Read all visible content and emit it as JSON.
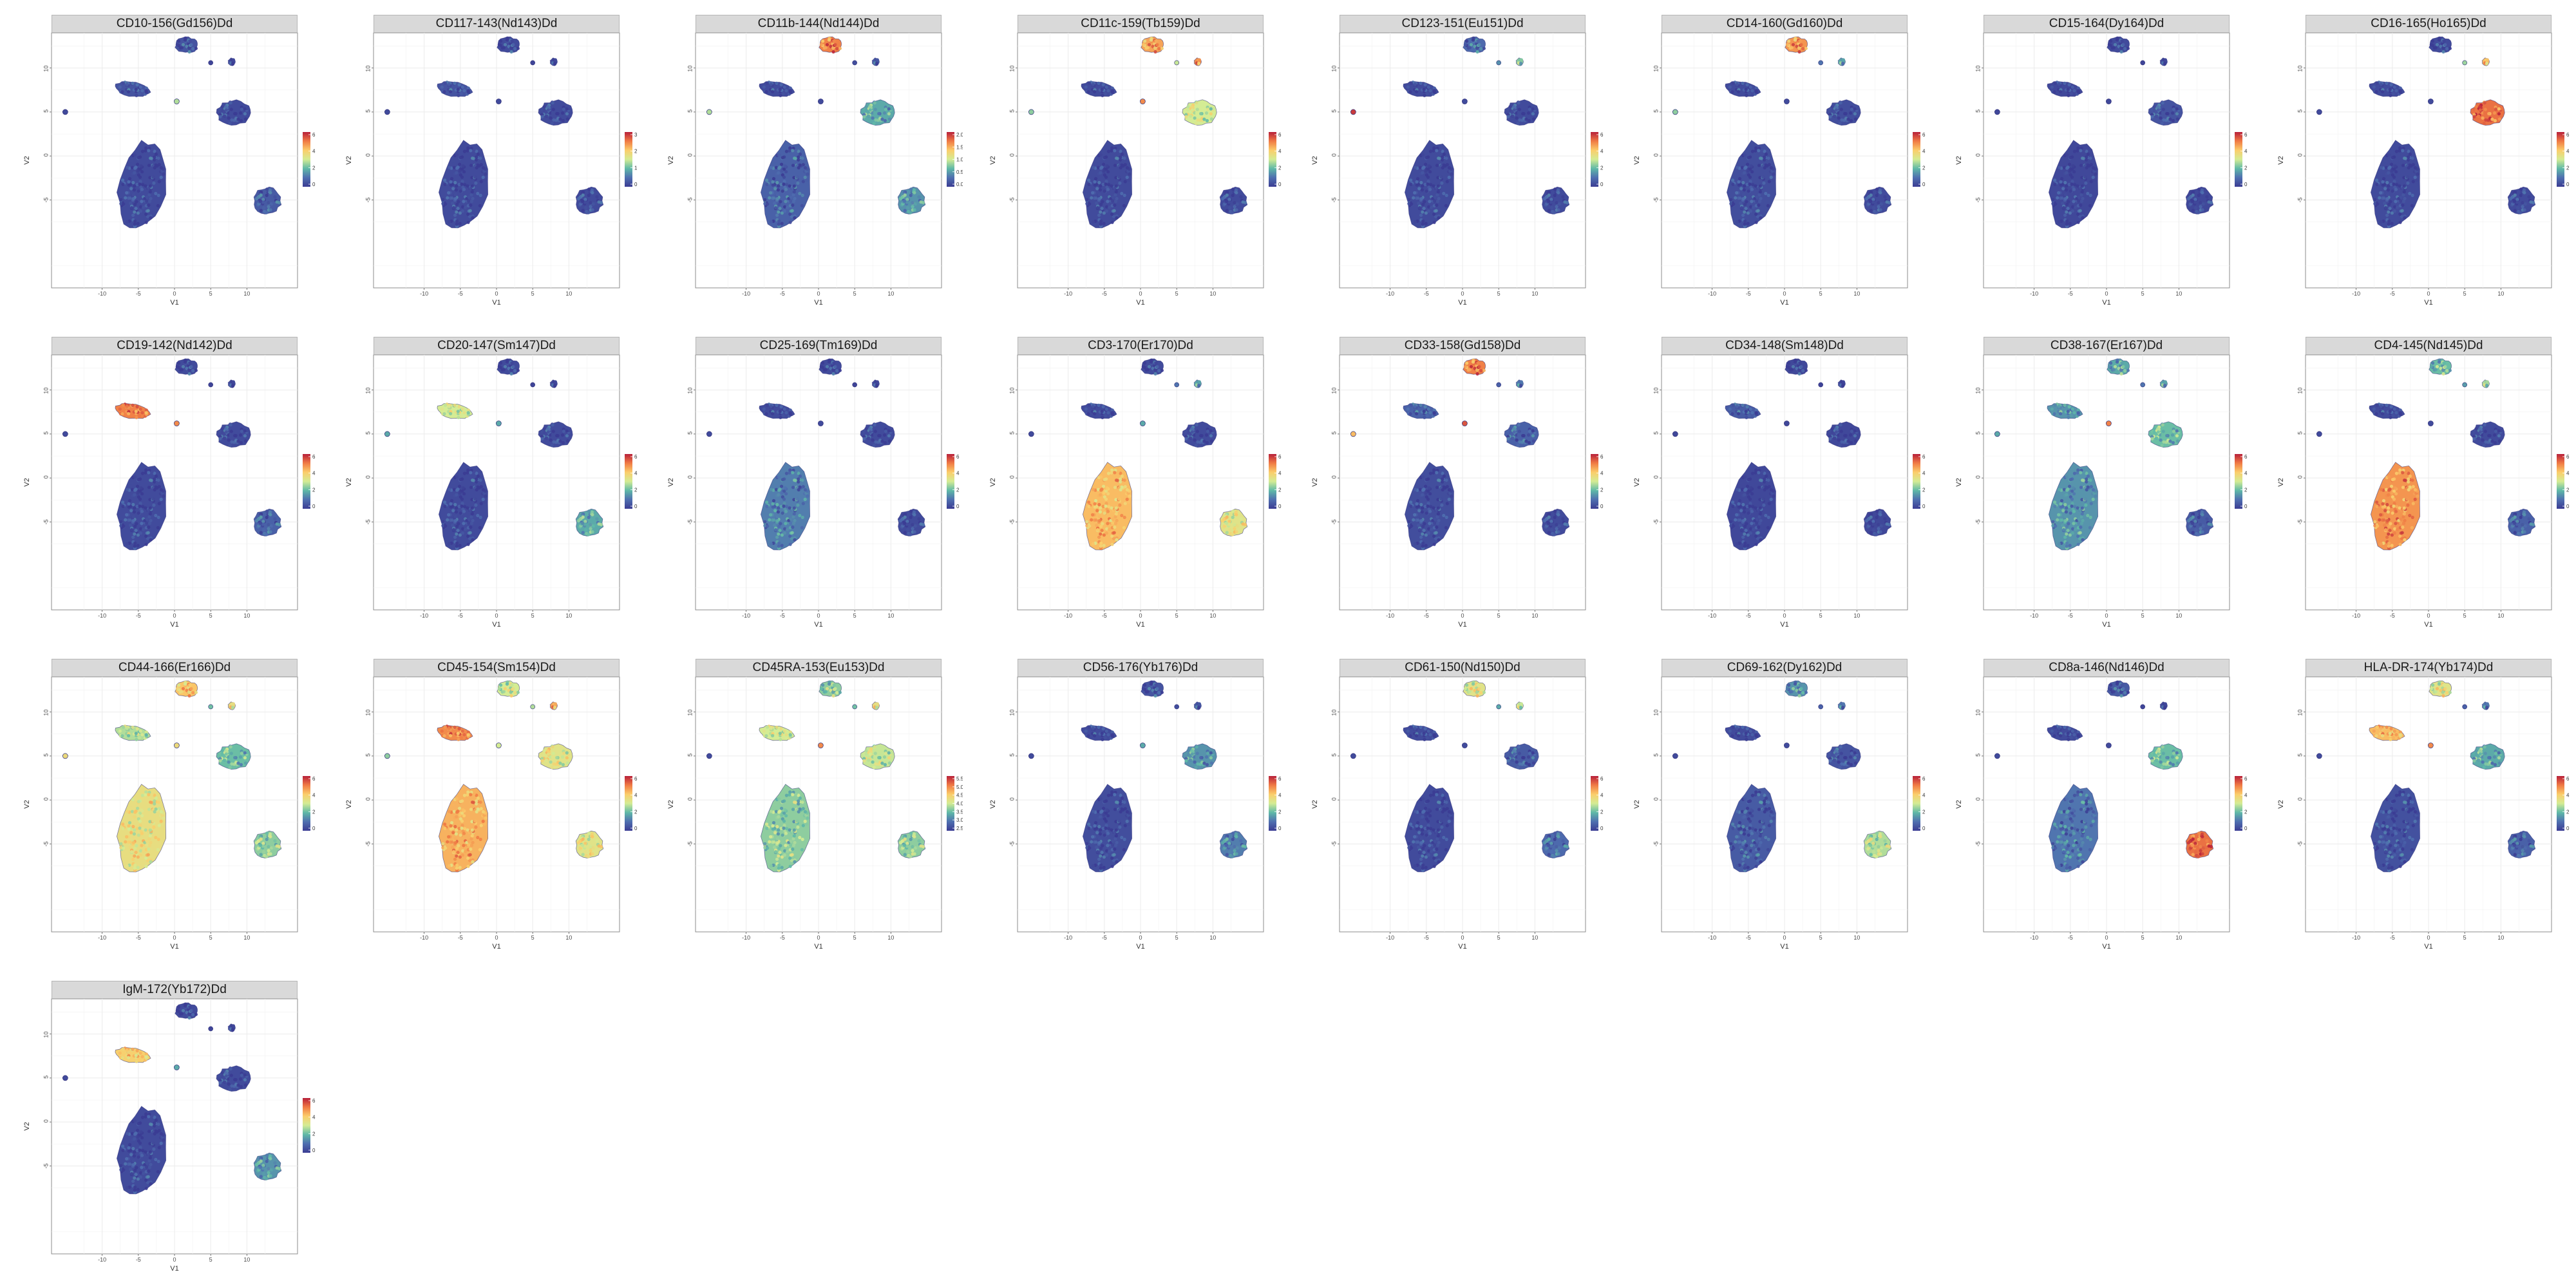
{
  "chart_data": {
    "type": "scatter",
    "layout": "faceted UMAP panels, 8 per row",
    "xlabel": "V1",
    "ylabel": "V2",
    "xlim": [
      -17,
      17
    ],
    "ylim": [
      -15,
      14
    ],
    "x_ticks": [
      -10,
      -5,
      0,
      5,
      10
    ],
    "y_ticks": [
      10,
      5,
      0,
      -5
    ],
    "x_tick_labels": [
      "-10",
      "-5",
      "0",
      "5",
      "10"
    ],
    "y_tick_labels": [
      "10",
      "5",
      "0",
      "-5"
    ],
    "grid": true,
    "legend_placement": "right of each panel",
    "colormap": [
      "#3b3c93",
      "#4f6fb0",
      "#5fb9a7",
      "#d4ec94",
      "#fbcd6b",
      "#f07a44",
      "#b8203a"
    ],
    "cluster_names": [
      "big-lower-left",
      "lower-right",
      "right-middle",
      "left-elongated",
      "top-center",
      "top-right-small",
      "mid-small",
      "far-left-dot"
    ],
    "panels": [
      {
        "title": "CD10-156(Gd156)Dd",
        "legend_ticks": [
          "6",
          "4",
          "2",
          "0"
        ],
        "levels": [
          0.05,
          0.1,
          0.05,
          0.08,
          0.08,
          0.05,
          0.45,
          0.05
        ]
      },
      {
        "title": "CD117-143(Nd143)Dd",
        "legend_ticks": [
          "3",
          "2",
          "1",
          "0"
        ],
        "levels": [
          0.05,
          0.05,
          0.05,
          0.08,
          0.05,
          0.05,
          0.05,
          0.05
        ]
      },
      {
        "title": "CD11b-144(Nd144)Dd",
        "legend_ticks": [
          "2.0",
          "1.5",
          "1.0",
          "0.5",
          "0.0"
        ],
        "levels": [
          0.12,
          0.25,
          0.3,
          0.05,
          0.82,
          0.1,
          0.05,
          0.45
        ]
      },
      {
        "title": "CD11c-159(Tb159)Dd",
        "legend_ticks": [
          "6",
          "4",
          "2",
          "0"
        ],
        "levels": [
          0.05,
          0.05,
          0.5,
          0.05,
          0.75,
          0.8,
          0.8,
          0.4
        ]
      },
      {
        "title": "CD123-151(Eu151)Dd",
        "legend_ticks": [
          "6",
          "4",
          "2",
          "0"
        ],
        "levels": [
          0.05,
          0.05,
          0.05,
          0.05,
          0.15,
          0.4,
          0.05,
          0.95
        ]
      },
      {
        "title": "CD14-160(Gd160)Dd",
        "legend_ticks": [
          "6",
          "4",
          "2",
          "0"
        ],
        "levels": [
          0.06,
          0.05,
          0.06,
          0.05,
          0.78,
          0.3,
          0.05,
          0.4
        ]
      },
      {
        "title": "CD15-164(Dy164)Dd",
        "legend_ticks": [
          "6",
          "4",
          "2",
          "0"
        ],
        "levels": [
          0.04,
          0.04,
          0.08,
          0.04,
          0.05,
          0.05,
          0.04,
          0.04
        ]
      },
      {
        "title": "CD16-165(Ho165)Dd",
        "legend_ticks": [
          "6",
          "4",
          "2",
          "0"
        ],
        "levels": [
          0.05,
          0.05,
          0.85,
          0.05,
          0.05,
          0.7,
          0.05,
          0.05
        ]
      },
      {
        "title": "CD19-142(Nd142)Dd",
        "legend_ticks": [
          "6",
          "4",
          "2",
          "0"
        ],
        "levels": [
          0.05,
          0.12,
          0.05,
          0.82,
          0.05,
          0.05,
          0.8,
          0.05
        ]
      },
      {
        "title": "CD20-147(Sm147)Dd",
        "legend_ticks": [
          "6",
          "4",
          "2",
          "0"
        ],
        "levels": [
          0.05,
          0.3,
          0.05,
          0.5,
          0.05,
          0.05,
          0.3,
          0.3
        ]
      },
      {
        "title": "CD25-169(Tm169)Dd",
        "legend_ticks": [
          "6",
          "4",
          "2",
          "0"
        ],
        "levels": [
          0.2,
          0.05,
          0.05,
          0.05,
          0.05,
          0.05,
          0.05,
          0.05
        ]
      },
      {
        "title": "CD3-170(Er170)Dd",
        "legend_ticks": [
          "6",
          "4",
          "2",
          "0"
        ],
        "levels": [
          0.7,
          0.55,
          0.05,
          0.05,
          0.05,
          0.3,
          0.3,
          0.05
        ]
      },
      {
        "title": "CD33-158(Gd158)Dd",
        "legend_ticks": [
          "6",
          "4",
          "2",
          "0"
        ],
        "levels": [
          0.06,
          0.05,
          0.12,
          0.12,
          0.82,
          0.2,
          0.9,
          0.7
        ]
      },
      {
        "title": "CD34-148(Sm148)Dd",
        "legend_ticks": [
          "6",
          "4",
          "2",
          "0"
        ],
        "levels": [
          0.04,
          0.04,
          0.04,
          0.1,
          0.04,
          0.04,
          0.04,
          0.04
        ]
      },
      {
        "title": "CD38-167(Er167)Dd",
        "legend_ticks": [
          "6",
          "4",
          "2",
          "0"
        ],
        "levels": [
          0.25,
          0.1,
          0.35,
          0.25,
          0.3,
          0.3,
          0.82,
          0.3
        ]
      },
      {
        "title": "CD4-145(Nd145)Dd",
        "legend_ticks": [
          "6",
          "4",
          "2",
          "0"
        ],
        "levels": [
          0.78,
          0.12,
          0.05,
          0.05,
          0.35,
          0.45,
          0.05,
          0.05
        ]
      },
      {
        "title": "CD44-166(Er166)Dd",
        "legend_ticks": [
          "6",
          "4",
          "2",
          "0"
        ],
        "levels": [
          0.58,
          0.4,
          0.35,
          0.45,
          0.68,
          0.6,
          0.6,
          0.6
        ]
      },
      {
        "title": "CD45-154(Sm154)Dd",
        "legend_ticks": [
          "6",
          "4",
          "2",
          "0"
        ],
        "levels": [
          0.72,
          0.55,
          0.55,
          0.8,
          0.5,
          0.75,
          0.5,
          0.4
        ]
      },
      {
        "title": "CD45RA-153(Eu153)Dd",
        "legend_ticks": [
          "5.5",
          "5.0",
          "4.5",
          "4.0",
          "3.5",
          "3.0",
          "2.5"
        ],
        "levels": [
          0.4,
          0.4,
          0.48,
          0.5,
          0.4,
          0.6,
          0.8,
          0.05
        ]
      },
      {
        "title": "CD56-176(Yb176)Dd",
        "legend_ticks": [
          "6",
          "4",
          "2",
          "0"
        ],
        "levels": [
          0.06,
          0.2,
          0.25,
          0.05,
          0.08,
          0.1,
          0.3,
          0.05
        ]
      },
      {
        "title": "CD61-150(Nd150)Dd",
        "legend_ticks": [
          "6",
          "4",
          "2",
          "0"
        ],
        "levels": [
          0.05,
          0.15,
          0.1,
          0.05,
          0.55,
          0.5,
          0.05,
          0.05
        ]
      },
      {
        "title": "CD69-162(Dy162)Dd",
        "legend_ticks": [
          "6",
          "4",
          "2",
          "0"
        ],
        "levels": [
          0.1,
          0.45,
          0.08,
          0.05,
          0.25,
          0.2,
          0.05,
          0.05
        ]
      },
      {
        "title": "CD8a-146(Nd146)Dd",
        "legend_ticks": [
          "6",
          "4",
          "2",
          "0"
        ],
        "levels": [
          0.18,
          0.85,
          0.35,
          0.05,
          0.1,
          0.05,
          0.05,
          0.05
        ]
      },
      {
        "title": "HLA-DR-174(Yb174)Dd",
        "legend_ticks": [
          "6",
          "4",
          "2",
          "0"
        ],
        "levels": [
          0.07,
          0.12,
          0.3,
          0.7,
          0.55,
          0.2,
          0.8,
          0.05
        ]
      },
      {
        "title": "IgM-172(Yb172)Dd",
        "legend_ticks": [
          "6",
          "4",
          "2",
          "0"
        ],
        "levels": [
          0.05,
          0.25,
          0.05,
          0.65,
          0.05,
          0.05,
          0.3,
          0.05
        ]
      }
    ]
  }
}
